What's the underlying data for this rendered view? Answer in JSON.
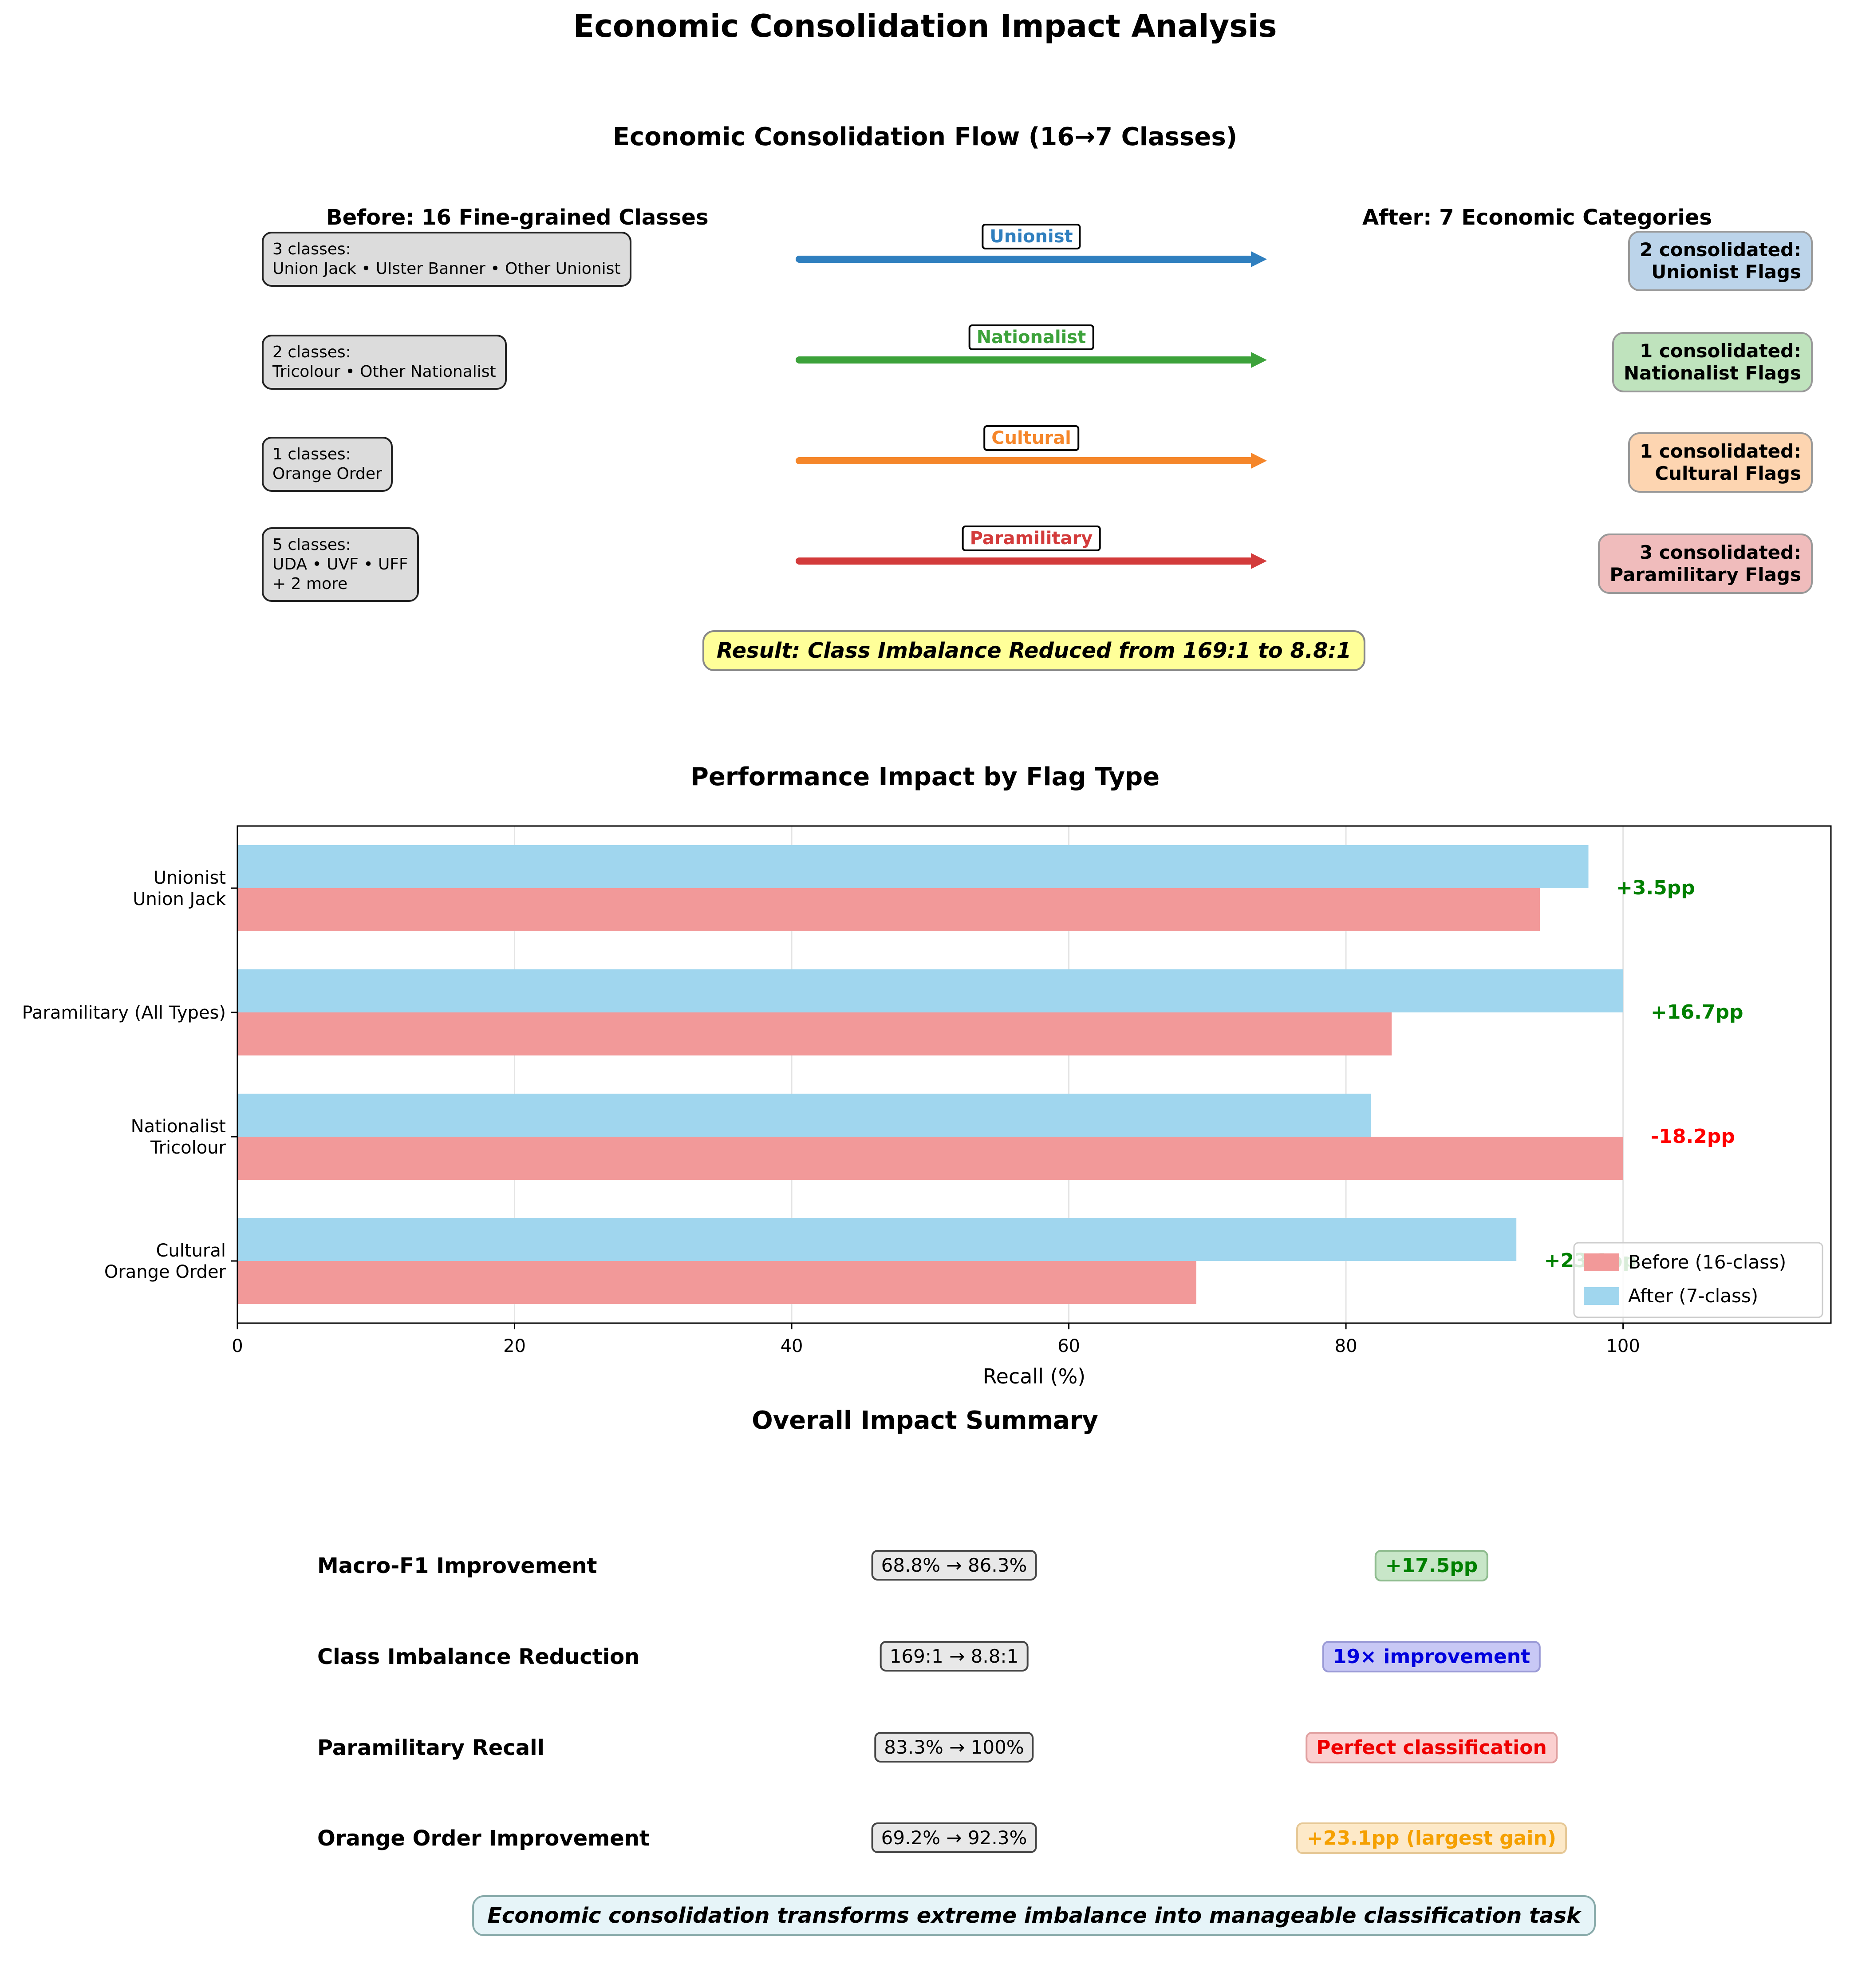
{
  "figure": {
    "title": "Economic Consolidation Impact Analysis"
  },
  "flow": {
    "title": "Economic Consolidation Flow (16→7 Classes)",
    "before_heading": "Before: 16 Fine-grained Classes",
    "after_heading": "After: 7 Economic Categories",
    "rows": [
      {
        "source": "3 classes:\nUnion Jack • Ulster Banner • Other Unionist",
        "label": "Unionist",
        "target": "2 consolidated:\nUnionist Flags",
        "color": "#2f7fbf",
        "target_bg": "#bcd4ea"
      },
      {
        "source": "2 classes:\nTricolour • Other Nationalist",
        "label": "Nationalist",
        "target": "1 consolidated:\nNationalist Flags",
        "color": "#3ca23a",
        "target_bg": "#bfe3bd"
      },
      {
        "source": "1 classes:\nOrange Order",
        "label": "Cultural",
        "target": "1 consolidated:\nCultural Flags",
        "color": "#f5862a",
        "target_bg": "#fdd5b1"
      },
      {
        "source": "5 classes:\nUDA • UVF • UFF\n+ 2 more",
        "label": "Paramilitary",
        "target": "3 consolidated:\nParamilitary Flags",
        "color": "#d33b3b",
        "target_bg": "#f0bcbc"
      }
    ],
    "result": "Result: Class Imbalance Reduced from 169:1 to 8.8:1"
  },
  "chart_data": {
    "type": "bar",
    "orientation": "horizontal",
    "title": "Performance Impact by Flag Type",
    "xlabel": "Recall (%)",
    "ylabel": "",
    "xlim": [
      0,
      115
    ],
    "xticks": [
      "0",
      "20",
      "40",
      "60",
      "80",
      "100"
    ],
    "grid": true,
    "legend_position": "lower-right",
    "categories": [
      "Unionist\nUnion Jack",
      "Paramilitary (All Types)",
      "Nationalist\nTricolour",
      "Cultural\nOrange Order"
    ],
    "series": [
      {
        "name": "Before (16-class)",
        "color": "#f29999",
        "values": [
          94.0,
          83.3,
          100.0,
          69.2
        ]
      },
      {
        "name": "After (7-class)",
        "color": "#a0d6ee",
        "values": [
          97.5,
          100.0,
          81.8,
          92.3
        ]
      }
    ],
    "annotations": [
      {
        "text": "+3.5pp",
        "color": "#008000"
      },
      {
        "text": "+16.7pp",
        "color": "#008000"
      },
      {
        "text": "-18.2pp",
        "color": "#ff0000"
      },
      {
        "text": "+23.1pp",
        "color": "#008000"
      }
    ]
  },
  "summary": {
    "title": "Overall Impact Summary",
    "rows": [
      {
        "label": "Macro-F1 Improvement",
        "before_after": "68.8% → 86.3%",
        "effect": "+17.5pp",
        "color": "#008000",
        "bg": "#c8e6c8",
        "border": "#8fbc8f"
      },
      {
        "label": "Class Imbalance Reduction",
        "before_after": "169:1 → 8.8:1",
        "effect": "19× improvement",
        "color": "#0000dd",
        "bg": "#c8c8f5",
        "border": "#9a9ad6"
      },
      {
        "label": "Paramilitary Recall",
        "before_after": "83.3% → 100%",
        "effect": "Perfect classification",
        "color": "#ee0000",
        "bg": "#fbd0d0",
        "border": "#e0a0a0"
      },
      {
        "label": "Orange Order Improvement",
        "before_after": "69.2% → 92.3%",
        "effect": "+23.1pp (largest gain)",
        "color": "#f5a000",
        "bg": "#fde9c8",
        "border": "#e6c896"
      }
    ],
    "conclusion": "Economic consolidation transforms extreme imbalance into manageable classification task"
  }
}
